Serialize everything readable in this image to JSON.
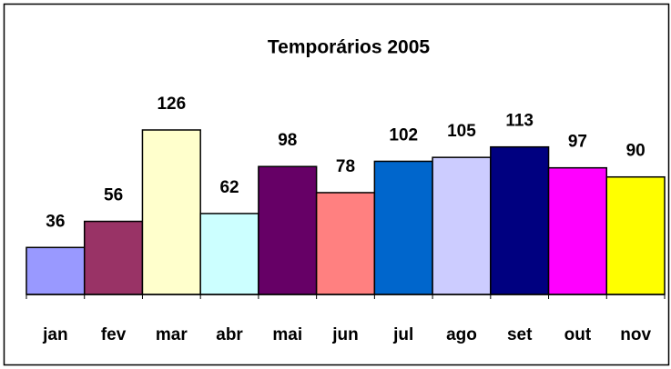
{
  "chart_data": {
    "type": "bar",
    "title": "Temporários 2005",
    "categories": [
      "jan",
      "fev",
      "mar",
      "abr",
      "mai",
      "jun",
      "jul",
      "ago",
      "set",
      "out",
      "nov"
    ],
    "values": [
      36,
      56,
      126,
      62,
      98,
      78,
      102,
      105,
      113,
      97,
      90
    ],
    "colors": [
      "#9999ff",
      "#993366",
      "#ffffcc",
      "#ccffff",
      "#660066",
      "#ff8080",
      "#0066cc",
      "#ccccff",
      "#000080",
      "#ff00ff",
      "#ffff00"
    ]
  }
}
